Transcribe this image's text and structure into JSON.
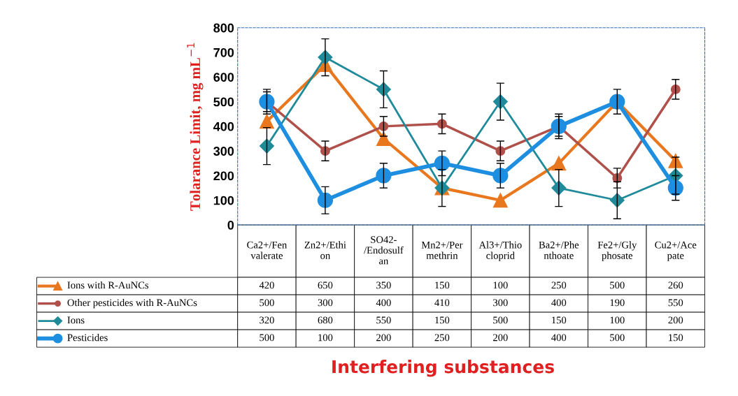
{
  "chart_data": {
    "type": "line",
    "annotations": [
      "Interfering substances"
    ],
    "ylabel": "Tolarance Limit, mg mL$^{−1}$",
    "categories": [
      "Ca2+/Fen\nvalerate",
      "Zn2+/Ethi\non",
      "SO42-\n/Endosulf\nan",
      "Mn2+/Per\nmethrin",
      "Al3+/Thio\ncloprid",
      "Ba2+/Phe\nnthoate",
      "Fe2+/Gly\nphosate",
      "Cu2+/Ace\npate"
    ],
    "series": [
      {
        "name": "Ions with R-AuNCs",
        "color": "#e8771e",
        "marker": "triangle",
        "values": [
          420,
          650,
          350,
          150,
          100,
          250,
          500,
          260
        ]
      },
      {
        "name": "Other pesticides with R-AuNCs",
        "color": "#b0504a",
        "marker": "circle",
        "values": [
          500,
          300,
          400,
          410,
          300,
          400,
          190,
          550
        ],
        "errors": [
          40,
          40,
          40,
          40,
          40,
          40,
          40,
          40
        ]
      },
      {
        "name": "Ions",
        "color": "#1f8a9a",
        "marker": "diamond",
        "values": [
          320,
          680,
          550,
          150,
          500,
          150,
          100,
          200
        ],
        "errors": [
          75,
          75,
          75,
          75,
          75,
          75,
          75,
          75
        ]
      },
      {
        "name": "Pesticides",
        "color": "#1e8fe0",
        "marker": "circle",
        "values": [
          500,
          100,
          200,
          250,
          200,
          400,
          500,
          150
        ],
        "errors": [
          50,
          55,
          50,
          50,
          50,
          50,
          50,
          50
        ]
      }
    ],
    "ylim": [
      0,
      800
    ],
    "yticks": [
      0,
      100,
      200,
      300,
      400,
      500,
      600,
      700,
      800
    ],
    "data_labels": true,
    "grid": false,
    "legend": "bottom left"
  }
}
